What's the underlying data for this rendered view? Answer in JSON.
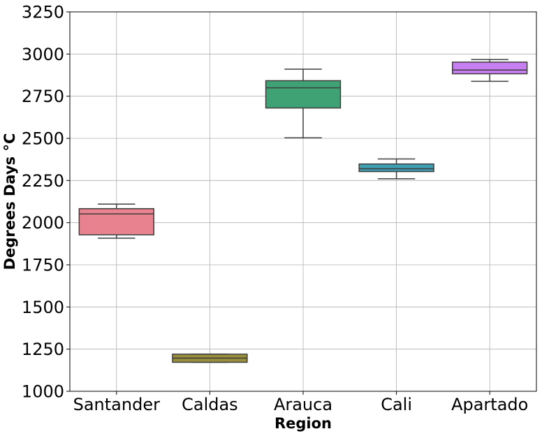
{
  "chart_data": {
    "type": "box",
    "title": "",
    "xlabel": "Region",
    "ylabel": "Degrees Days °C",
    "ylim": [
      1000,
      3250
    ],
    "yticks": [
      "1000",
      "1250",
      "1500",
      "1750",
      "2000",
      "2250",
      "2500",
      "2750",
      "3000",
      "3250"
    ],
    "grid": true,
    "categories": [
      "Santander",
      "Caldas",
      "Arauca",
      "Cali",
      "Apartado"
    ],
    "boxes": [
      {
        "category": "Santander",
        "whisker_low": 1908,
        "q1": 1928,
        "median": 2052,
        "q3": 2083,
        "whisker_high": 2110,
        "color": "#e8828f"
      },
      {
        "category": "Caldas",
        "whisker_low": 1172,
        "q1": 1172,
        "median": 1197,
        "q3": 1220,
        "whisker_high": 1220,
        "color": "#9a8f3c"
      },
      {
        "category": "Arauca",
        "whisker_low": 2503,
        "q1": 2680,
        "median": 2800,
        "q3": 2842,
        "whisker_high": 2910,
        "color": "#3fa275"
      },
      {
        "category": "Cali",
        "whisker_low": 2260,
        "q1": 2303,
        "median": 2320,
        "q3": 2348,
        "whisker_high": 2378,
        "color": "#3f9eb2"
      },
      {
        "category": "Apartado",
        "whisker_low": 2838,
        "q1": 2883,
        "median": 2905,
        "q3": 2952,
        "whisker_high": 2967,
        "color": "#c77ef0"
      }
    ]
  }
}
